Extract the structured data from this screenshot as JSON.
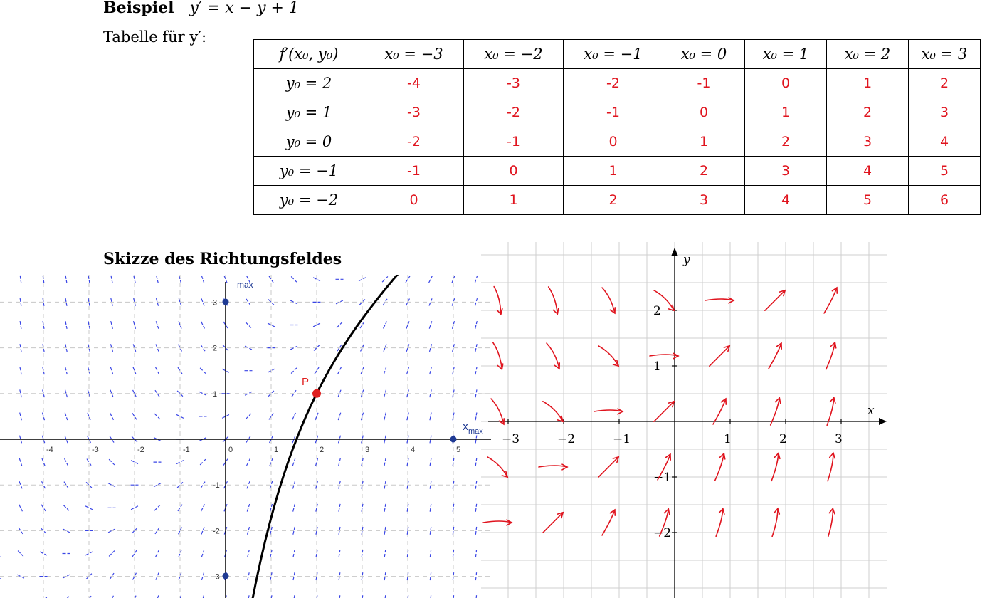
{
  "heading": {
    "word": "Beispiel",
    "equation": "y′ = x − y + 1"
  },
  "table": {
    "label": "Tabelle für y′:",
    "corner": "f′(x₀, y₀)",
    "columns": [
      "x₀ = −3",
      "x₀ = −2",
      "x₀ = −1",
      "x₀ = 0",
      "x₀ = 1",
      "x₀ = 2",
      "x₀ = 3"
    ],
    "rows": [
      {
        "label": "y₀ = 2",
        "values": [
          "-4",
          "-3",
          "-2",
          "-1",
          "0",
          "1",
          "2"
        ]
      },
      {
        "label": "y₀ = 1",
        "values": [
          "-3",
          "-2",
          "-1",
          "0",
          "1",
          "2",
          "3"
        ]
      },
      {
        "label": "y₀ = 0",
        "values": [
          "-2",
          "-1",
          "0",
          "1",
          "2",
          "3",
          "4"
        ]
      },
      {
        "label": "y₀ = −1",
        "values": [
          "-1",
          "0",
          "1",
          "2",
          "3",
          "4",
          "5"
        ]
      },
      {
        "label": "y₀ = −2",
        "values": [
          "0",
          "1",
          "2",
          "3",
          "4",
          "5",
          "6"
        ]
      }
    ]
  },
  "section_title": "Skizze des Richtungsfeldes",
  "geogebra": {
    "ticks_x": [
      "-4",
      "-3",
      "-2",
      "-1",
      "0",
      "1",
      "2",
      "3",
      "4",
      "5"
    ],
    "ticks_y": [
      "3",
      "2",
      "1",
      "-1",
      "-2",
      "-3"
    ],
    "point_label": "P",
    "xmax_label": "x",
    "xmax_sub": "max",
    "ymax_label": "max",
    "point": {
      "x": 2,
      "y": 1
    },
    "field_color": "#3a46e6",
    "curve_color": "#000000",
    "point_color": "#e02020"
  },
  "sketch": {
    "axis_x_label": "x",
    "axis_y_label": "y",
    "ticks_x": [
      "−3",
      "−2",
      "−1",
      "1",
      "2",
      "3"
    ],
    "ticks_y": [
      "2",
      "1",
      "−1",
      "−2"
    ],
    "arrow_color": "#e0141e"
  }
}
